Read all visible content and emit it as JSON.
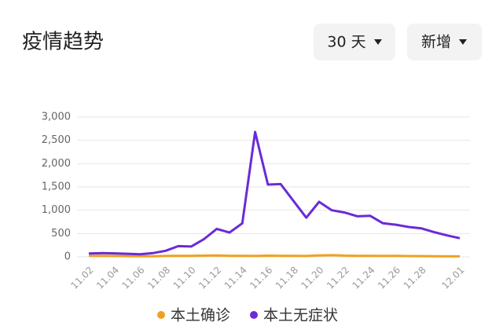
{
  "header": {
    "title": "疫情趋势",
    "buttons": [
      "30 天",
      "新增"
    ]
  },
  "chart_data": {
    "type": "line",
    "categories": [
      "11.02",
      null,
      "11.04",
      null,
      "11.06",
      null,
      "11.08",
      null,
      "11.10",
      null,
      "11.12",
      null,
      "11.14",
      null,
      "11.16",
      null,
      "11.18",
      null,
      "11.20",
      null,
      "11.22",
      null,
      "11.24",
      null,
      "11.26",
      null,
      "11.28",
      null,
      null,
      "12.01"
    ],
    "series": [
      {
        "name": "本土确诊",
        "color": "#f0a020",
        "values": [
          20,
          22,
          18,
          15,
          12,
          14,
          18,
          20,
          22,
          25,
          28,
          22,
          20,
          18,
          25,
          22,
          20,
          18,
          28,
          35,
          25,
          22,
          20,
          18,
          20,
          17,
          15,
          12,
          10,
          10
        ]
      },
      {
        "name": "本土无症状",
        "color": "#6a2bd6",
        "values": [
          70,
          80,
          75,
          65,
          55,
          80,
          130,
          230,
          220,
          380,
          600,
          520,
          720,
          2680,
          1550,
          1560,
          1200,
          840,
          1180,
          1000,
          950,
          870,
          880,
          720,
          690,
          640,
          610,
          530,
          460,
          400
        ]
      }
    ],
    "ylim": [
      0,
      3000
    ],
    "yticks": [
      0,
      500,
      {
        "value": 1000,
        "label": "1,000"
      },
      {
        "value": 1500,
        "label": "1,500"
      },
      {
        "value": 2000,
        "label": "2,000"
      },
      {
        "value": 2500,
        "label": "2,500"
      },
      {
        "value": 3000,
        "label": "3,000"
      }
    ],
    "grid": true
  }
}
